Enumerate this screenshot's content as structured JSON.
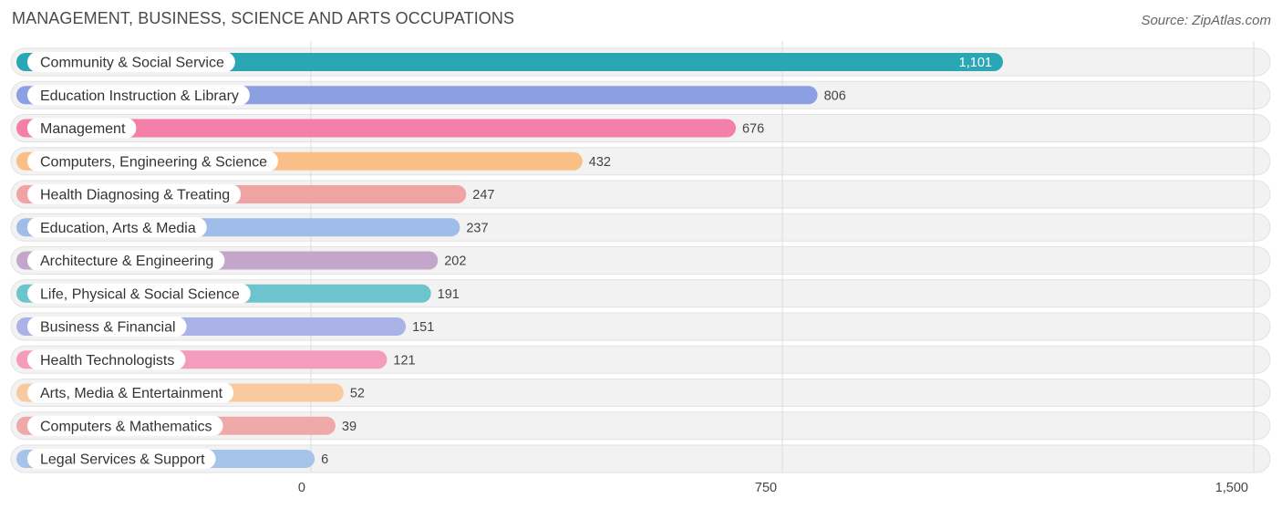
{
  "header": {
    "title": "MANAGEMENT, BUSINESS, SCIENCE AND ARTS OCCUPATIONS",
    "source": "Source: ZipAtlas.com"
  },
  "chart_data": {
    "type": "bar",
    "orientation": "horizontal",
    "title": "MANAGEMENT, BUSINESS, SCIENCE AND ARTS OCCUPATIONS",
    "xlabel": "",
    "ylabel": "",
    "xlim": [
      0,
      1500
    ],
    "x_ticks": [
      0,
      750,
      1500
    ],
    "x_tick_labels": [
      "0",
      "750",
      "1,500"
    ],
    "grid": true,
    "categories": [
      "Community & Social Service",
      "Education Instruction & Library",
      "Management",
      "Computers, Engineering & Science",
      "Health Diagnosing & Treating",
      "Education, Arts & Media",
      "Architecture & Engineering",
      "Life, Physical & Social Science",
      "Business & Financial",
      "Health Technologists",
      "Arts, Media & Entertainment",
      "Computers & Mathematics",
      "Legal Services & Support"
    ],
    "values": [
      1101,
      806,
      676,
      432,
      247,
      237,
      202,
      191,
      151,
      121,
      52,
      39,
      6
    ],
    "value_labels": [
      "1,101",
      "806",
      "676",
      "432",
      "247",
      "237",
      "202",
      "191",
      "151",
      "121",
      "52",
      "39",
      "6"
    ],
    "colors": [
      "#2aa7b5",
      "#8d9fe3",
      "#f47fa8",
      "#f9bf86",
      "#efa3a3",
      "#9fbde8",
      "#c4a6cb",
      "#6cc4cc",
      "#abb2e8",
      "#f49cbb",
      "#f9c99f",
      "#f0a9a9",
      "#a6c3ea"
    ]
  }
}
